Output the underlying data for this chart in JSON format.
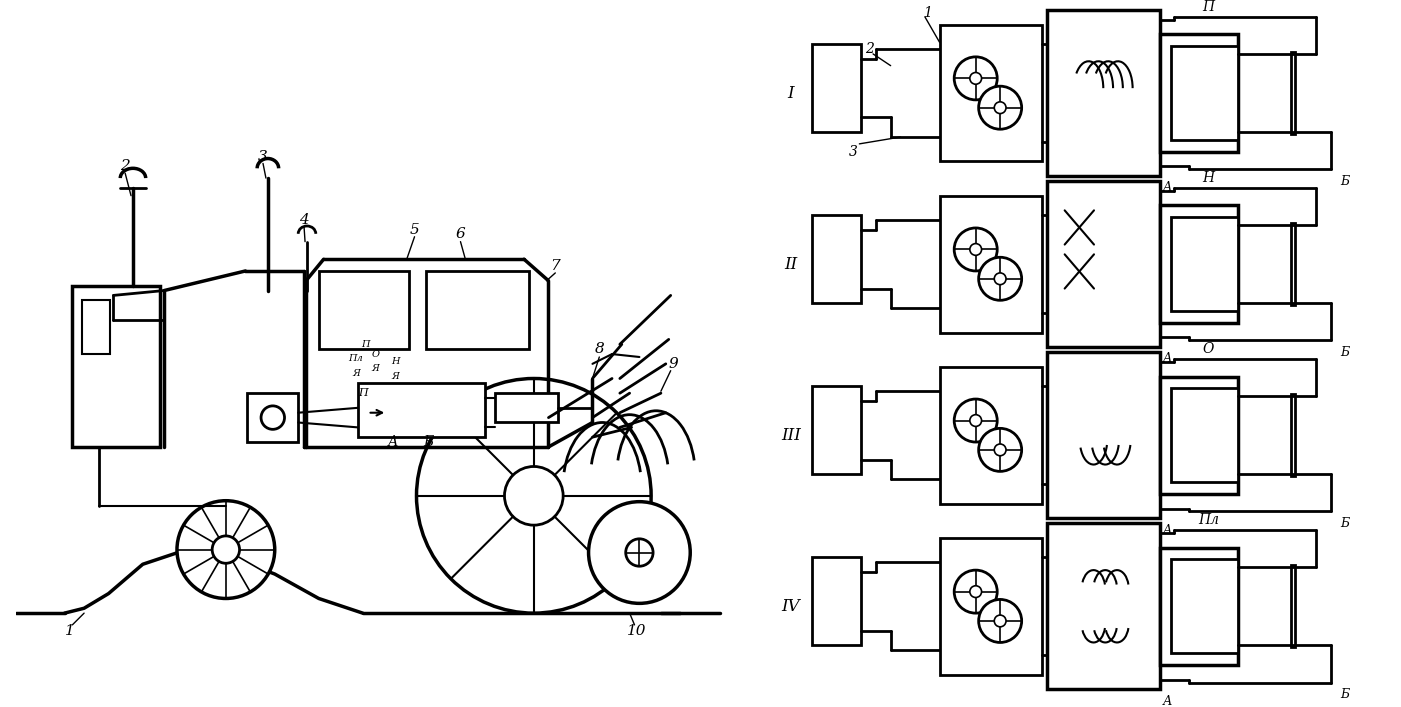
{
  "bg_color": "#ffffff",
  "line_color": "#000000",
  "fig_width": 14.01,
  "fig_height": 7.07,
  "dpi": 100,
  "circuits": [
    {
      "roman": "I",
      "mode": "П",
      "oy": 18
    },
    {
      "roman": "II",
      "mode": "Н",
      "oy": 193
    },
    {
      "roman": "III",
      "mode": "О",
      "oy": 368
    },
    {
      "roman": "IV",
      "mode": "Пл",
      "oy": 543
    }
  ]
}
